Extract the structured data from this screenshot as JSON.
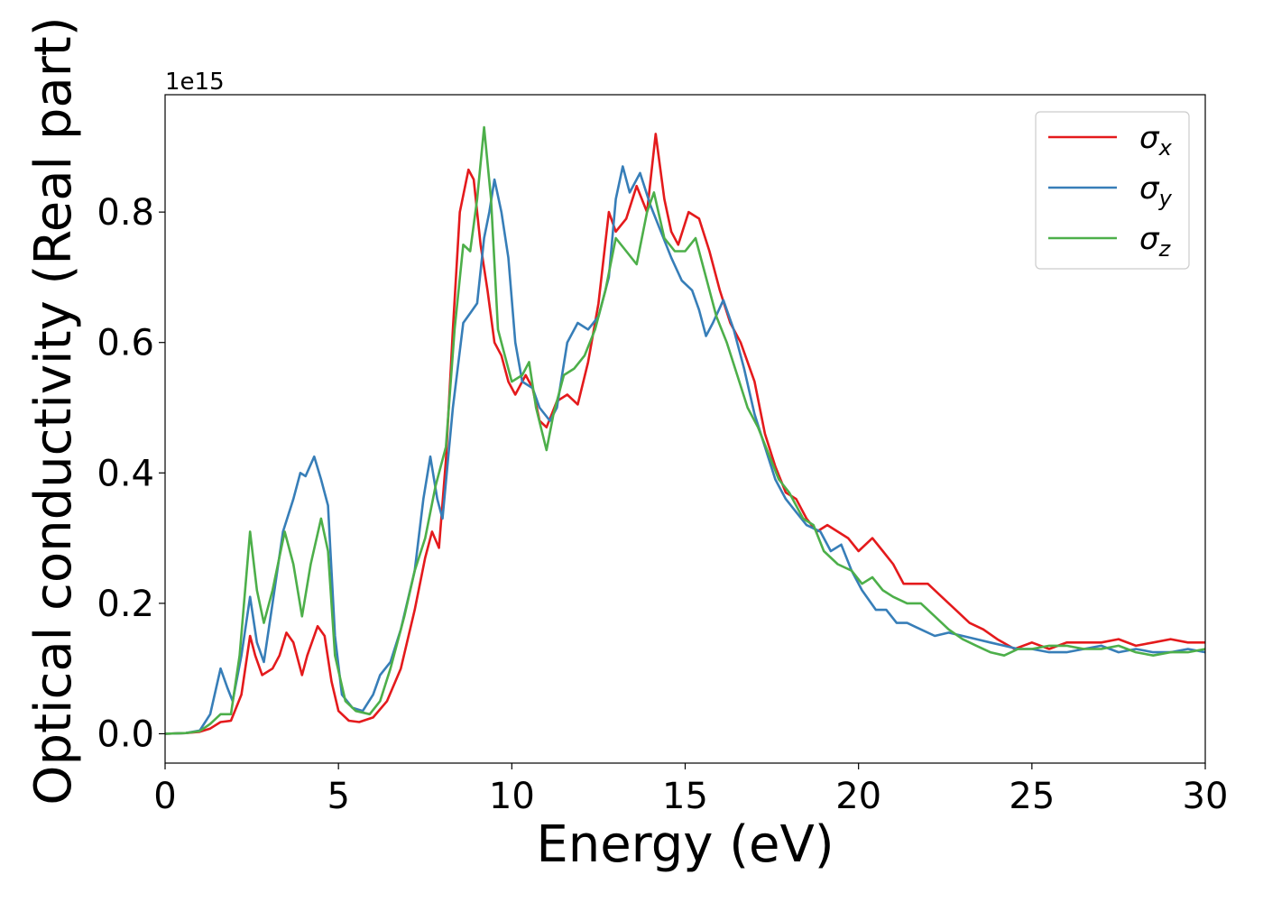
{
  "chart_data": {
    "type": "line",
    "title": "",
    "xlabel": "Energy (eV)",
    "ylabel": "Optical conductivity (Real part)",
    "y_offset_text": "1e15",
    "xlim": [
      0,
      30
    ],
    "ylim": [
      -0.045,
      0.98
    ],
    "xticks": [
      0,
      5,
      10,
      15,
      20,
      25,
      30
    ],
    "yticks": [
      0.0,
      0.2,
      0.4,
      0.6,
      0.8
    ],
    "xtick_labels": [
      "0",
      "5",
      "10",
      "15",
      "20",
      "25",
      "30"
    ],
    "ytick_labels": [
      "0.0",
      "0.2",
      "0.4",
      "0.6",
      "0.8"
    ],
    "grid": false,
    "legend_position": "top-right",
    "series": [
      {
        "name": "σx",
        "symbol": "σ",
        "subscript": "x",
        "color": "#e41a1c",
        "points": [
          [
            0,
            0
          ],
          [
            0.6,
            0.001
          ],
          [
            1.0,
            0.003
          ],
          [
            1.3,
            0.008
          ],
          [
            1.6,
            0.018
          ],
          [
            1.9,
            0.02
          ],
          [
            2.2,
            0.06
          ],
          [
            2.45,
            0.15
          ],
          [
            2.6,
            0.12
          ],
          [
            2.8,
            0.09
          ],
          [
            3.1,
            0.1
          ],
          [
            3.3,
            0.12
          ],
          [
            3.5,
            0.155
          ],
          [
            3.7,
            0.14
          ],
          [
            3.95,
            0.09
          ],
          [
            4.1,
            0.12
          ],
          [
            4.4,
            0.165
          ],
          [
            4.6,
            0.15
          ],
          [
            4.8,
            0.08
          ],
          [
            5.0,
            0.035
          ],
          [
            5.3,
            0.02
          ],
          [
            5.6,
            0.018
          ],
          [
            6.0,
            0.025
          ],
          [
            6.4,
            0.05
          ],
          [
            6.8,
            0.1
          ],
          [
            7.2,
            0.19
          ],
          [
            7.5,
            0.27
          ],
          [
            7.7,
            0.31
          ],
          [
            7.9,
            0.285
          ],
          [
            8.1,
            0.42
          ],
          [
            8.3,
            0.62
          ],
          [
            8.5,
            0.8
          ],
          [
            8.75,
            0.865
          ],
          [
            8.9,
            0.85
          ],
          [
            9.1,
            0.75
          ],
          [
            9.3,
            0.68
          ],
          [
            9.5,
            0.6
          ],
          [
            9.7,
            0.58
          ],
          [
            9.9,
            0.54
          ],
          [
            10.1,
            0.52
          ],
          [
            10.4,
            0.55
          ],
          [
            10.6,
            0.53
          ],
          [
            10.8,
            0.48
          ],
          [
            11.0,
            0.47
          ],
          [
            11.3,
            0.51
          ],
          [
            11.6,
            0.52
          ],
          [
            11.9,
            0.505
          ],
          [
            12.2,
            0.57
          ],
          [
            12.5,
            0.66
          ],
          [
            12.8,
            0.8
          ],
          [
            13.0,
            0.77
          ],
          [
            13.3,
            0.79
          ],
          [
            13.6,
            0.84
          ],
          [
            13.9,
            0.8
          ],
          [
            14.15,
            0.92
          ],
          [
            14.4,
            0.82
          ],
          [
            14.6,
            0.77
          ],
          [
            14.8,
            0.75
          ],
          [
            15.1,
            0.8
          ],
          [
            15.4,
            0.79
          ],
          [
            15.7,
            0.74
          ],
          [
            16.0,
            0.68
          ],
          [
            16.3,
            0.63
          ],
          [
            16.6,
            0.6
          ],
          [
            17.0,
            0.54
          ],
          [
            17.3,
            0.46
          ],
          [
            17.6,
            0.41
          ],
          [
            17.9,
            0.37
          ],
          [
            18.2,
            0.36
          ],
          [
            18.5,
            0.33
          ],
          [
            18.8,
            0.31
          ],
          [
            19.1,
            0.32
          ],
          [
            19.4,
            0.31
          ],
          [
            19.7,
            0.3
          ],
          [
            20.0,
            0.28
          ],
          [
            20.4,
            0.3
          ],
          [
            20.7,
            0.28
          ],
          [
            21.0,
            0.26
          ],
          [
            21.3,
            0.23
          ],
          [
            21.6,
            0.23
          ],
          [
            22.0,
            0.23
          ],
          [
            22.4,
            0.21
          ],
          [
            22.8,
            0.19
          ],
          [
            23.2,
            0.17
          ],
          [
            23.6,
            0.16
          ],
          [
            24.0,
            0.145
          ],
          [
            24.5,
            0.13
          ],
          [
            25.0,
            0.14
          ],
          [
            25.5,
            0.13
          ],
          [
            26.0,
            0.14
          ],
          [
            26.5,
            0.14
          ],
          [
            27.0,
            0.14
          ],
          [
            27.5,
            0.145
          ],
          [
            28.0,
            0.135
          ],
          [
            28.5,
            0.14
          ],
          [
            29.0,
            0.145
          ],
          [
            29.5,
            0.14
          ],
          [
            30.0,
            0.14
          ]
        ]
      },
      {
        "name": "σy",
        "symbol": "σ",
        "subscript": "y",
        "color": "#377eb8",
        "points": [
          [
            0,
            0
          ],
          [
            0.6,
            0.001
          ],
          [
            1.0,
            0.005
          ],
          [
            1.3,
            0.03
          ],
          [
            1.6,
            0.1
          ],
          [
            1.8,
            0.07
          ],
          [
            1.95,
            0.05
          ],
          [
            2.2,
            0.12
          ],
          [
            2.45,
            0.21
          ],
          [
            2.65,
            0.14
          ],
          [
            2.85,
            0.11
          ],
          [
            3.1,
            0.2
          ],
          [
            3.4,
            0.31
          ],
          [
            3.7,
            0.36
          ],
          [
            3.9,
            0.4
          ],
          [
            4.05,
            0.395
          ],
          [
            4.3,
            0.425
          ],
          [
            4.5,
            0.39
          ],
          [
            4.7,
            0.35
          ],
          [
            4.9,
            0.15
          ],
          [
            5.1,
            0.06
          ],
          [
            5.4,
            0.04
          ],
          [
            5.7,
            0.035
          ],
          [
            6.0,
            0.06
          ],
          [
            6.2,
            0.09
          ],
          [
            6.5,
            0.11
          ],
          [
            6.8,
            0.16
          ],
          [
            7.2,
            0.25
          ],
          [
            7.45,
            0.36
          ],
          [
            7.65,
            0.425
          ],
          [
            7.85,
            0.36
          ],
          [
            8.0,
            0.33
          ],
          [
            8.3,
            0.5
          ],
          [
            8.6,
            0.63
          ],
          [
            8.8,
            0.645
          ],
          [
            9.0,
            0.66
          ],
          [
            9.2,
            0.76
          ],
          [
            9.35,
            0.8
          ],
          [
            9.5,
            0.85
          ],
          [
            9.7,
            0.8
          ],
          [
            9.9,
            0.73
          ],
          [
            10.1,
            0.6
          ],
          [
            10.3,
            0.54
          ],
          [
            10.6,
            0.53
          ],
          [
            10.8,
            0.5
          ],
          [
            11.1,
            0.48
          ],
          [
            11.3,
            0.5
          ],
          [
            11.6,
            0.6
          ],
          [
            11.9,
            0.63
          ],
          [
            12.2,
            0.62
          ],
          [
            12.5,
            0.64
          ],
          [
            12.8,
            0.7
          ],
          [
            13.0,
            0.82
          ],
          [
            13.2,
            0.87
          ],
          [
            13.4,
            0.83
          ],
          [
            13.7,
            0.86
          ],
          [
            14.0,
            0.81
          ],
          [
            14.3,
            0.77
          ],
          [
            14.6,
            0.73
          ],
          [
            14.9,
            0.695
          ],
          [
            15.2,
            0.68
          ],
          [
            15.4,
            0.65
          ],
          [
            15.6,
            0.61
          ],
          [
            15.8,
            0.63
          ],
          [
            16.1,
            0.665
          ],
          [
            16.4,
            0.62
          ],
          [
            16.7,
            0.56
          ],
          [
            17.0,
            0.49
          ],
          [
            17.3,
            0.44
          ],
          [
            17.6,
            0.39
          ],
          [
            17.9,
            0.36
          ],
          [
            18.2,
            0.34
          ],
          [
            18.5,
            0.32
          ],
          [
            18.9,
            0.31
          ],
          [
            19.2,
            0.28
          ],
          [
            19.5,
            0.29
          ],
          [
            19.8,
            0.25
          ],
          [
            20.1,
            0.22
          ],
          [
            20.5,
            0.19
          ],
          [
            20.8,
            0.19
          ],
          [
            21.1,
            0.17
          ],
          [
            21.4,
            0.17
          ],
          [
            21.8,
            0.16
          ],
          [
            22.2,
            0.15
          ],
          [
            22.6,
            0.155
          ],
          [
            23.0,
            0.15
          ],
          [
            23.4,
            0.145
          ],
          [
            23.8,
            0.14
          ],
          [
            24.2,
            0.135
          ],
          [
            24.6,
            0.13
          ],
          [
            25.0,
            0.13
          ],
          [
            25.5,
            0.125
          ],
          [
            26.0,
            0.125
          ],
          [
            26.5,
            0.13
          ],
          [
            27.0,
            0.135
          ],
          [
            27.5,
            0.125
          ],
          [
            28.0,
            0.13
          ],
          [
            28.5,
            0.125
          ],
          [
            29.0,
            0.125
          ],
          [
            29.5,
            0.13
          ],
          [
            30.0,
            0.125
          ]
        ]
      },
      {
        "name": "σz",
        "symbol": "σ",
        "subscript": "z",
        "color": "#4daf4a",
        "points": [
          [
            0,
            0
          ],
          [
            0.6,
            0.001
          ],
          [
            1.0,
            0.004
          ],
          [
            1.3,
            0.015
          ],
          [
            1.6,
            0.03
          ],
          [
            1.9,
            0.03
          ],
          [
            2.15,
            0.12
          ],
          [
            2.45,
            0.31
          ],
          [
            2.65,
            0.22
          ],
          [
            2.85,
            0.17
          ],
          [
            3.1,
            0.22
          ],
          [
            3.45,
            0.31
          ],
          [
            3.7,
            0.26
          ],
          [
            3.95,
            0.18
          ],
          [
            4.2,
            0.26
          ],
          [
            4.5,
            0.33
          ],
          [
            4.7,
            0.28
          ],
          [
            4.9,
            0.12
          ],
          [
            5.2,
            0.05
          ],
          [
            5.5,
            0.035
          ],
          [
            5.9,
            0.03
          ],
          [
            6.2,
            0.05
          ],
          [
            6.5,
            0.1
          ],
          [
            6.9,
            0.18
          ],
          [
            7.2,
            0.25
          ],
          [
            7.5,
            0.3
          ],
          [
            7.8,
            0.38
          ],
          [
            8.1,
            0.44
          ],
          [
            8.35,
            0.62
          ],
          [
            8.6,
            0.75
          ],
          [
            8.8,
            0.74
          ],
          [
            9.0,
            0.82
          ],
          [
            9.2,
            0.93
          ],
          [
            9.4,
            0.82
          ],
          [
            9.6,
            0.62
          ],
          [
            9.8,
            0.58
          ],
          [
            10.0,
            0.54
          ],
          [
            10.3,
            0.55
          ],
          [
            10.5,
            0.57
          ],
          [
            10.7,
            0.5
          ],
          [
            11.0,
            0.435
          ],
          [
            11.2,
            0.49
          ],
          [
            11.5,
            0.55
          ],
          [
            11.8,
            0.56
          ],
          [
            12.1,
            0.58
          ],
          [
            12.4,
            0.62
          ],
          [
            12.7,
            0.68
          ],
          [
            13.0,
            0.76
          ],
          [
            13.3,
            0.74
          ],
          [
            13.6,
            0.72
          ],
          [
            13.9,
            0.8
          ],
          [
            14.1,
            0.83
          ],
          [
            14.4,
            0.76
          ],
          [
            14.7,
            0.74
          ],
          [
            15.0,
            0.74
          ],
          [
            15.3,
            0.76
          ],
          [
            15.6,
            0.7
          ],
          [
            15.9,
            0.64
          ],
          [
            16.2,
            0.6
          ],
          [
            16.5,
            0.55
          ],
          [
            16.8,
            0.5
          ],
          [
            17.1,
            0.47
          ],
          [
            17.4,
            0.43
          ],
          [
            17.7,
            0.39
          ],
          [
            18.0,
            0.37
          ],
          [
            18.4,
            0.33
          ],
          [
            18.7,
            0.32
          ],
          [
            19.0,
            0.28
          ],
          [
            19.4,
            0.26
          ],
          [
            19.8,
            0.25
          ],
          [
            20.1,
            0.23
          ],
          [
            20.4,
            0.24
          ],
          [
            20.7,
            0.22
          ],
          [
            21.0,
            0.21
          ],
          [
            21.4,
            0.2
          ],
          [
            21.8,
            0.2
          ],
          [
            22.2,
            0.18
          ],
          [
            22.6,
            0.16
          ],
          [
            23.0,
            0.145
          ],
          [
            23.4,
            0.135
          ],
          [
            23.8,
            0.125
          ],
          [
            24.2,
            0.12
          ],
          [
            24.6,
            0.13
          ],
          [
            25.0,
            0.13
          ],
          [
            25.5,
            0.135
          ],
          [
            26.0,
            0.135
          ],
          [
            26.5,
            0.13
          ],
          [
            27.0,
            0.13
          ],
          [
            27.5,
            0.135
          ],
          [
            28.0,
            0.125
          ],
          [
            28.5,
            0.12
          ],
          [
            29.0,
            0.125
          ],
          [
            29.5,
            0.125
          ],
          [
            30.0,
            0.13
          ]
        ]
      }
    ]
  }
}
